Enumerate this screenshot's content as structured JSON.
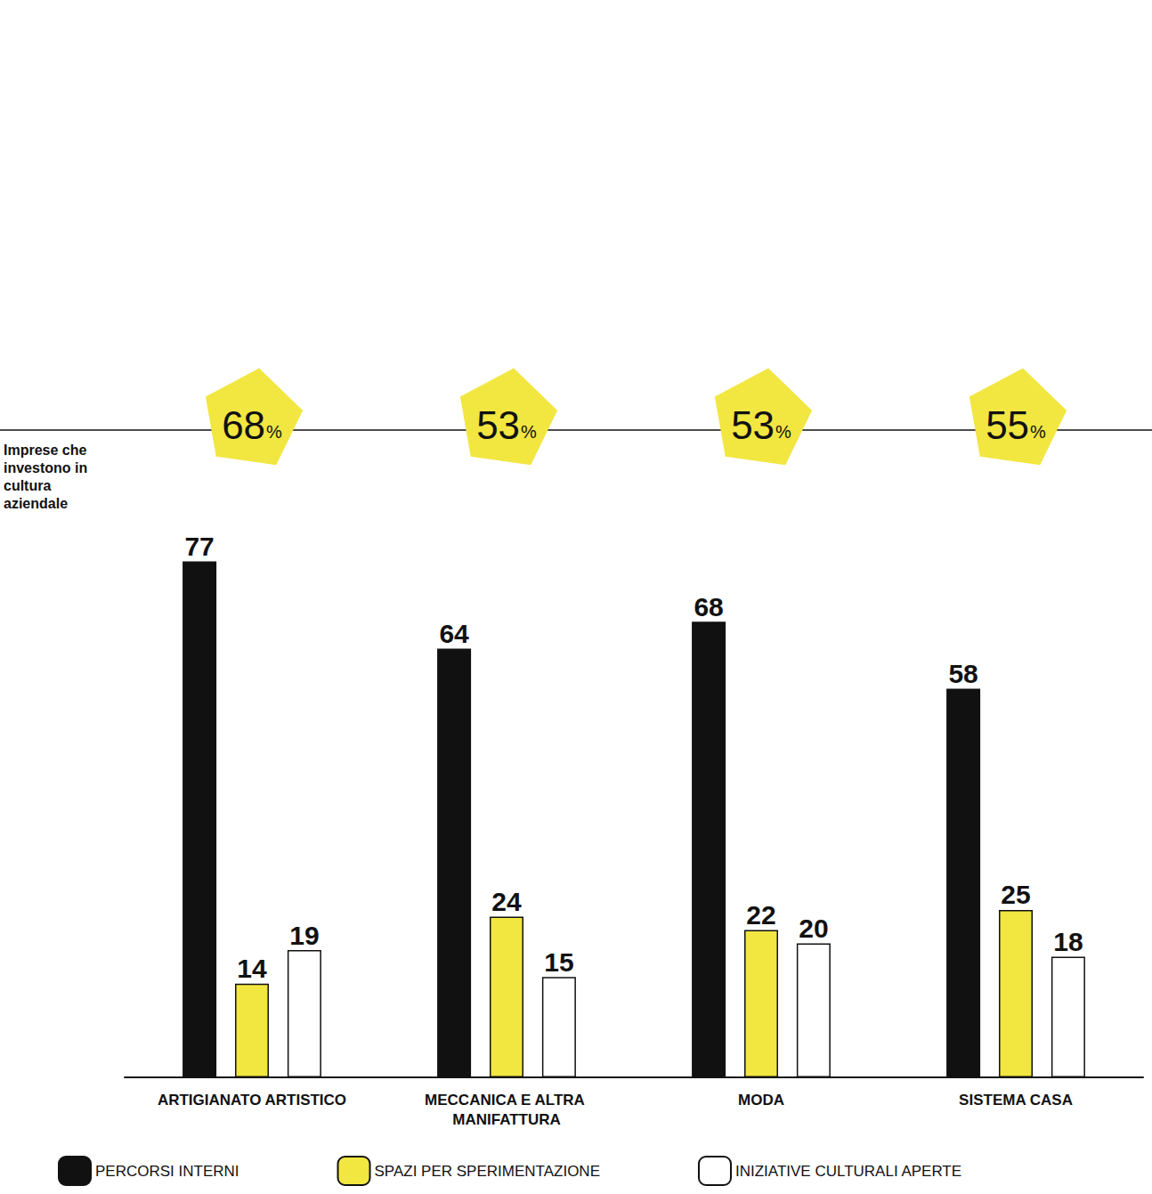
{
  "chart_data": {
    "type": "bar",
    "categories": [
      "ARTIGIANATO ARTISTICO",
      "MECCANICA E ALTRA MANIFATTURA",
      "MODA",
      "SISTEMA CASA"
    ],
    "series": [
      {
        "name": "PERCORSI INTERNI",
        "color": "#111111",
        "values": [
          77,
          64,
          68,
          58
        ]
      },
      {
        "name": "SPAZI PER SPERIMENTAZIONE",
        "color": "#f2e641",
        "values": [
          14,
          24,
          22,
          25
        ]
      },
      {
        "name": "INIZIATIVE CULTURALI APERTE",
        "color": "#ffffff",
        "values": [
          19,
          15,
          20,
          18
        ]
      }
    ],
    "ylim": [
      0,
      80
    ],
    "grid": false,
    "data_labels": true,
    "tick_labels": "x",
    "legend": "bottom",
    "annotation_title": "Imprese che investono in cultura aziendale",
    "annotation_values": [
      68,
      53,
      53,
      55
    ],
    "annotation_labels": [
      "68%",
      "53%",
      "53%",
      "55%"
    ]
  }
}
